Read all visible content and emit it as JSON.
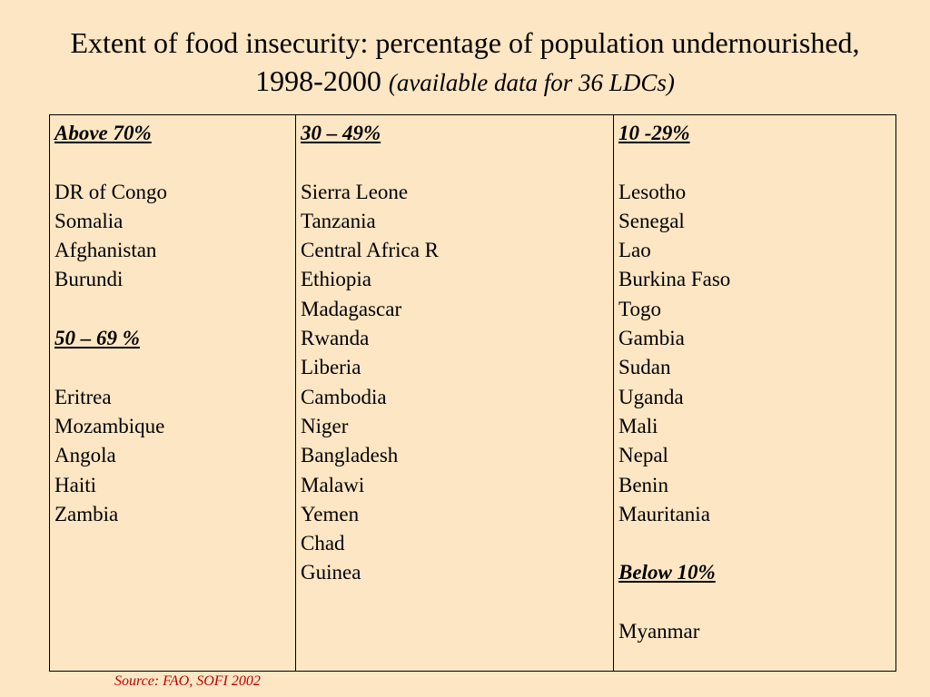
{
  "title": {
    "main": "Extent of food insecurity: percentage of population undernourished, 1998-2000",
    "subtitle": "(available data for 36 LDCs)"
  },
  "columns": [
    {
      "groups": [
        {
          "heading": "Above 70%",
          "countries": [
            "DR of Congo",
            "Somalia",
            "Afghanistan",
            "Burundi"
          ]
        },
        {
          "heading": "50 – 69 %",
          "countries": [
            "Eritrea",
            "Mozambique",
            "Angola",
            "Haiti",
            "Zambia"
          ]
        }
      ]
    },
    {
      "groups": [
        {
          "heading": "30  – 49%",
          "countries": [
            "Sierra Leone",
            "Tanzania",
            "Central Africa R",
            "Ethiopia",
            "Madagascar",
            "Rwanda",
            "Liberia",
            "Cambodia",
            "Niger",
            "Bangladesh",
            "Malawi",
            "Yemen",
            "Chad",
            "Guinea"
          ]
        }
      ]
    },
    {
      "groups": [
        {
          "heading": "10 -29%",
          "countries": [
            "Lesotho",
            "Senegal",
            "Lao",
            "Burkina Faso",
            "Togo",
            "Gambia",
            "Sudan",
            "Uganda",
            "Mali",
            "Nepal",
            "Benin",
            "Mauritania"
          ]
        },
        {
          "heading": "Below 10%",
          "countries": [
            "Myanmar"
          ]
        }
      ]
    }
  ],
  "source": "Source: FAO, SOFI 2002"
}
